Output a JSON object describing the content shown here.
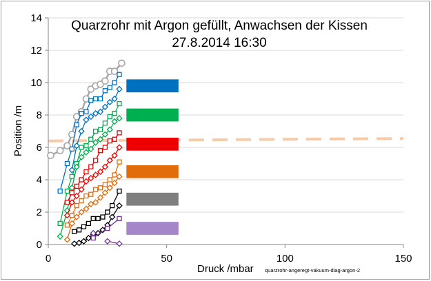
{
  "chart_data": {
    "type": "scatter",
    "title_line1": "Quarzrohr mit Argon gefüllt, Anwachsen der Kissen",
    "title_line2": "27.8.2014   16:30",
    "xlabel": "Druck /mbar",
    "ylabel": "Position /m",
    "source_label": "quarzrohr-angeregt-vakuum-diag-argon-2",
    "xlim": [
      0,
      150
    ],
    "ylim": [
      0,
      14
    ],
    "xticks": [
      0,
      50,
      100,
      150
    ],
    "yticks": [
      0,
      2,
      4,
      6,
      8,
      10,
      12,
      14
    ],
    "grid": "horizontal",
    "reference_line": {
      "y_start": 6.4,
      "y_end": 6.55,
      "x_start": 0,
      "x_end": 150,
      "color": "#f8cba8",
      "style": "dashed"
    },
    "legend_swatches": [
      {
        "color": "#0070c0",
        "y_low": 9.4,
        "y_high": 10.2
      },
      {
        "color": "#00b050",
        "y_low": 7.6,
        "y_high": 8.4
      },
      {
        "color": "#ee0000",
        "y_low": 5.8,
        "y_high": 6.6
      },
      {
        "color": "#e36c0a",
        "y_low": 4.1,
        "y_high": 4.9
      },
      {
        "color": "#7f7f7f",
        "y_low": 2.4,
        "y_high": 3.2
      },
      {
        "color": "#a586c8",
        "y_low": 0.6,
        "y_high": 1.4
      }
    ],
    "legend_x_range": [
      33,
      55
    ],
    "series": [
      {
        "color": "#a6a6a6",
        "marker": "circle",
        "line": true,
        "x": [
          1,
          5,
          8,
          10,
          12,
          14,
          16,
          18,
          20,
          22,
          24,
          26,
          28,
          31
        ],
        "y": [
          5.5,
          5.8,
          6.1,
          6.8,
          7.9,
          8.2,
          9.0,
          9.6,
          9.8,
          9.9,
          10.1,
          10.7,
          10.7,
          11.2
        ]
      },
      {
        "color": "#0070c0",
        "marker": "square",
        "line": true,
        "x": [
          5,
          8,
          10,
          12,
          14,
          16,
          18,
          20,
          22,
          24,
          26,
          28,
          30
        ],
        "y": [
          3.3,
          5.0,
          5.9,
          7.4,
          8.1,
          8.2,
          8.9,
          9.0,
          9.0,
          9.5,
          9.7,
          10.0,
          10.5
        ]
      },
      {
        "color": "#0070c0",
        "marker": "diamond",
        "line": true,
        "x": [
          10,
          12,
          14,
          16,
          18,
          20,
          22,
          24,
          26,
          28,
          30
        ],
        "y": [
          4.6,
          6.1,
          7.0,
          7.7,
          7.9,
          8.1,
          8.2,
          8.5,
          8.8,
          9.0,
          9.6
        ]
      },
      {
        "color": "#00b050",
        "marker": "square",
        "line": true,
        "x": [
          5,
          8,
          10,
          12,
          14,
          16,
          18,
          20,
          22,
          24,
          26,
          28,
          30
        ],
        "y": [
          1.3,
          3.3,
          4.2,
          5.0,
          6.0,
          6.1,
          6.5,
          7.0,
          7.1,
          7.5,
          7.9,
          8.1,
          8.7
        ]
      },
      {
        "color": "#00b050",
        "marker": "diamond",
        "line": true,
        "x": [
          5,
          8,
          10,
          12,
          14,
          16,
          18,
          20,
          22,
          24,
          26,
          28,
          30
        ],
        "y": [
          0.5,
          2.1,
          3.5,
          4.8,
          5.4,
          5.7,
          5.9,
          6.3,
          6.5,
          6.8,
          7.1,
          7.6,
          7.8
        ]
      },
      {
        "color": "#ee0000",
        "marker": "square",
        "line": true,
        "x": [
          8,
          10,
          12,
          14,
          16,
          18,
          20,
          22,
          24,
          26,
          28,
          30
        ],
        "y": [
          2.6,
          3.2,
          3.6,
          4.0,
          4.5,
          4.8,
          5.2,
          5.8,
          6.0,
          6.4,
          6.5,
          6.9
        ]
      },
      {
        "color": "#ee0000",
        "marker": "diamond",
        "line": true,
        "x": [
          8,
          10,
          12,
          14,
          16,
          18,
          20,
          22,
          24,
          26,
          28,
          30
        ],
        "y": [
          1.8,
          2.6,
          3.0,
          3.4,
          3.9,
          4.1,
          4.3,
          4.5,
          4.8,
          5.2,
          5.5,
          6.0
        ]
      },
      {
        "color": "#e36c0a",
        "marker": "square",
        "line": true,
        "x": [
          8,
          10,
          12,
          14,
          16,
          18,
          20,
          22,
          24,
          26,
          28,
          30
        ],
        "y": [
          1.2,
          1.8,
          2.4,
          2.7,
          3.0,
          3.1,
          3.4,
          3.5,
          3.7,
          4.0,
          4.3,
          5.1
        ]
      },
      {
        "color": "#e36c0a",
        "marker": "diamond",
        "line": true,
        "x": [
          8,
          10,
          12,
          14,
          16,
          18,
          20,
          22,
          24,
          26,
          28,
          30
        ],
        "y": [
          0.3,
          1.3,
          1.7,
          2.0,
          2.2,
          2.5,
          2.6,
          2.9,
          3.2,
          3.5,
          3.8,
          4.2
        ]
      },
      {
        "color": "#000000",
        "marker": "square",
        "line": true,
        "x": [
          11,
          13,
          15,
          17,
          19,
          21,
          23,
          25,
          27,
          30
        ],
        "y": [
          0.8,
          0.9,
          1.1,
          1.3,
          1.6,
          1.6,
          1.7,
          2.0,
          2.4,
          3.3
        ]
      },
      {
        "color": "#000000",
        "marker": "diamond",
        "line": true,
        "x": [
          11,
          13,
          15,
          17,
          19,
          21,
          23,
          25,
          27,
          30
        ],
        "y": [
          0.05,
          0.1,
          0.2,
          0.4,
          0.6,
          0.7,
          0.9,
          1.2,
          1.7,
          2.4
        ]
      },
      {
        "color": "#7030a0",
        "marker": "square",
        "line": true,
        "x": [
          19,
          25,
          30
        ],
        "y": [
          0.4,
          1.0,
          1.6
        ]
      },
      {
        "color": "#7030a0",
        "marker": "diamond",
        "line": true,
        "x": [
          25,
          30
        ],
        "y": [
          0.2,
          0.05
        ]
      },
      {
        "color": "#7030a0",
        "marker": "diamond",
        "line": false,
        "x": [
          19
        ],
        "y": [
          0.7
        ]
      }
    ]
  }
}
